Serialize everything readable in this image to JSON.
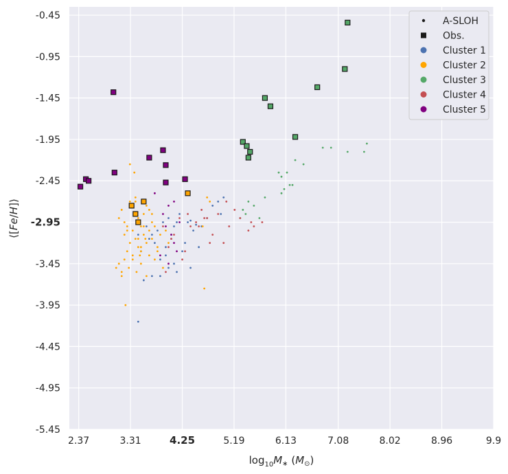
{
  "chart_data": {
    "type": "scatter",
    "xlabel": "log10 M* (M⊙)",
    "ylabel": "⟨[Fe/H]⟩",
    "xlim": [
      2.2,
      9.9
    ],
    "ylim": [
      -5.45,
      -0.35
    ],
    "xticks": [
      "2.37",
      "3.31",
      "4.25",
      "5.19",
      "6.13",
      "7.08",
      "8.02",
      "8.96",
      "9.9"
    ],
    "xtick_values": [
      2.37,
      3.31,
      4.25,
      5.19,
      6.13,
      7.08,
      8.02,
      8.96,
      9.9
    ],
    "xtick_bold": "4.25",
    "yticks": [
      "-0.45",
      "-0.95",
      "-1.45",
      "-1.95",
      "-2.45",
      "-2.95",
      "-3.45",
      "-3.95",
      "-4.45",
      "-4.95",
      "-5.45"
    ],
    "ytick_values": [
      -0.45,
      -0.95,
      -1.45,
      -1.95,
      -2.45,
      -2.95,
      -3.45,
      -3.95,
      -4.45,
      -4.95,
      -5.45
    ],
    "ytick_bold": "-2.95",
    "grid": true,
    "legend_position": "top-right",
    "legend": [
      {
        "label": "A-SLOH",
        "marker": "dot",
        "color": "#1a1a1a"
      },
      {
        "label": "Obs.",
        "marker": "square",
        "color": "#1a1a1a"
      },
      {
        "label": "Cluster 1",
        "marker": "circle",
        "color": "#4c72b0"
      },
      {
        "label": "Cluster 2",
        "marker": "circle",
        "color": "#ffa500"
      },
      {
        "label": "Cluster 3",
        "marker": "circle",
        "color": "#55a868"
      },
      {
        "label": "Cluster 4",
        "marker": "circle",
        "color": "#c44e52"
      },
      {
        "label": "Cluster 5",
        "marker": "circle",
        "color": "#800080"
      }
    ],
    "series": [
      {
        "name": "Cluster 1",
        "color": "#4c72b0",
        "kind": "sim",
        "x": [
          3.45,
          3.5,
          3.6,
          3.7,
          3.75,
          3.8,
          3.85,
          3.9,
          3.95,
          4.0,
          4.05,
          4.1,
          4.15,
          4.2,
          4.3,
          4.35,
          4.45,
          4.5,
          4.55,
          4.6,
          4.7,
          4.8,
          4.9,
          5.0,
          3.55,
          3.65,
          3.95,
          4.05,
          4.25,
          4.4,
          4.0,
          4.15,
          3.45,
          3.7,
          4.4,
          4.95,
          3.85,
          4.1
        ],
        "y": [
          -3.1,
          -3.3,
          -3.0,
          -3.6,
          -3.2,
          -3.05,
          -3.4,
          -2.95,
          -3.25,
          -3.5,
          -3.15,
          -3.0,
          -3.55,
          -2.85,
          -3.2,
          -2.95,
          -3.05,
          -2.98,
          -3.25,
          -3.0,
          -2.9,
          -2.75,
          -2.7,
          -2.65,
          -3.65,
          -3.15,
          -3.35,
          -3.1,
          -3.3,
          -3.5,
          -2.9,
          -2.95,
          -4.15,
          -3.1,
          -2.93,
          -2.85,
          -3.6,
          -3.45
        ]
      },
      {
        "name": "Cluster 2",
        "color": "#ffa500",
        "kind": "sim",
        "x": [
          3.05,
          3.1,
          3.15,
          3.15,
          3.2,
          3.2,
          3.25,
          3.25,
          3.3,
          3.3,
          3.35,
          3.35,
          3.4,
          3.4,
          3.45,
          3.45,
          3.5,
          3.5,
          3.55,
          3.55,
          3.6,
          3.6,
          3.65,
          3.65,
          3.7,
          3.7,
          3.75,
          3.75,
          3.8,
          3.85,
          3.9,
          3.95,
          4.0,
          3.3,
          3.4,
          3.5,
          3.6,
          3.2,
          3.1,
          3.45,
          3.55,
          3.35,
          3.25,
          3.15,
          3.65,
          3.8,
          4.65,
          4.7,
          4.75,
          3.22,
          3.38,
          3.5,
          3.42,
          3.48,
          3.58,
          3.7,
          3.28,
          4.62
        ],
        "y": [
          -3.5,
          -3.45,
          -3.55,
          -2.8,
          -3.4,
          -3.1,
          -3.0,
          -3.3,
          -3.2,
          -2.7,
          -3.35,
          -3.05,
          -3.15,
          -2.65,
          -3.25,
          -2.9,
          -3.0,
          -3.3,
          -2.85,
          -3.1,
          -3.2,
          -2.75,
          -3.05,
          -3.35,
          -3.15,
          -2.95,
          -3.4,
          -3.0,
          -3.25,
          -3.1,
          -3.5,
          -3.05,
          -3.2,
          -2.25,
          -2.7,
          -3.45,
          -3.6,
          -2.95,
          -2.9,
          -3.15,
          -3.0,
          -3.4,
          -3.05,
          -3.6,
          -2.8,
          -3.3,
          -3.75,
          -2.65,
          -2.7,
          -3.95,
          -2.35,
          -3.25,
          -3.55,
          -3.35,
          -3.15,
          -2.85,
          -3.5,
          -3.0
        ]
      },
      {
        "name": "Cluster 3",
        "color": "#55a868",
        "kind": "sim",
        "x": [
          5.35,
          5.4,
          5.45,
          5.55,
          5.65,
          5.75,
          6.0,
          6.05,
          6.1,
          6.15,
          6.2,
          6.25,
          6.3,
          6.45,
          6.8,
          6.95,
          7.25,
          7.55,
          7.6,
          6.05,
          5.3
        ],
        "y": [
          -2.8,
          -2.85,
          -2.7,
          -2.75,
          -2.9,
          -2.65,
          -2.35,
          -2.4,
          -2.55,
          -2.35,
          -2.5,
          -2.5,
          -2.2,
          -2.25,
          -2.05,
          -2.05,
          -2.1,
          -2.1,
          -2.0,
          -2.6,
          -2.9
        ]
      },
      {
        "name": "Cluster 4",
        "color": "#c44e52",
        "kind": "sim",
        "x": [
          3.9,
          4.0,
          4.1,
          4.2,
          4.3,
          4.4,
          4.5,
          4.6,
          4.7,
          4.8,
          4.9,
          5.0,
          5.1,
          5.2,
          5.3,
          5.45,
          5.5,
          5.55,
          5.7,
          4.25,
          4.35,
          4.55,
          4.75,
          5.05,
          4.65,
          3.95,
          4.05
        ],
        "y": [
          -3.0,
          -3.25,
          -3.1,
          -2.9,
          -3.3,
          -3.0,
          -2.95,
          -2.8,
          -2.9,
          -3.1,
          -2.85,
          -3.2,
          -3.0,
          -2.8,
          -2.9,
          -3.05,
          -2.95,
          -3.0,
          -2.95,
          -3.4,
          -2.85,
          -3.0,
          -3.2,
          -2.7,
          -2.9,
          -3.55,
          -3.15
        ]
      },
      {
        "name": "Cluster 5",
        "color": "#800080",
        "kind": "sim",
        "x": [
          3.75,
          3.9,
          3.95,
          4.0,
          4.05,
          4.1,
          4.15,
          4.2,
          3.85,
          4.0,
          4.1
        ],
        "y": [
          -2.6,
          -2.85,
          -3.0,
          -2.75,
          -3.1,
          -3.2,
          -3.3,
          -2.95,
          -3.35,
          -3.45,
          -2.7
        ]
      },
      {
        "name": "Obs. Cluster 2",
        "color": "#ffa500",
        "kind": "obs",
        "x": [
          3.33,
          3.4,
          3.45,
          3.55,
          4.35
        ],
        "y": [
          -2.75,
          -2.85,
          -2.95,
          -2.7,
          -2.6
        ]
      },
      {
        "name": "Obs. Cluster 3",
        "color": "#55a868",
        "kind": "obs",
        "x": [
          5.35,
          5.42,
          5.48,
          5.45,
          5.75,
          5.85,
          6.3,
          6.7,
          7.2,
          7.25
        ],
        "y": [
          -1.98,
          -2.03,
          -2.1,
          -2.17,
          -1.45,
          -1.55,
          -1.92,
          -1.32,
          -1.1,
          -0.54
        ]
      },
      {
        "name": "Obs. Cluster 5",
        "color": "#800080",
        "kind": "obs",
        "x": [
          2.4,
          2.5,
          2.55,
          3.0,
          3.02,
          3.65,
          3.9,
          3.95,
          3.95,
          4.3
        ],
        "y": [
          -2.52,
          -2.43,
          -2.45,
          -1.38,
          -2.35,
          -2.17,
          -2.08,
          -2.26,
          -2.47,
          -2.43
        ]
      }
    ]
  }
}
